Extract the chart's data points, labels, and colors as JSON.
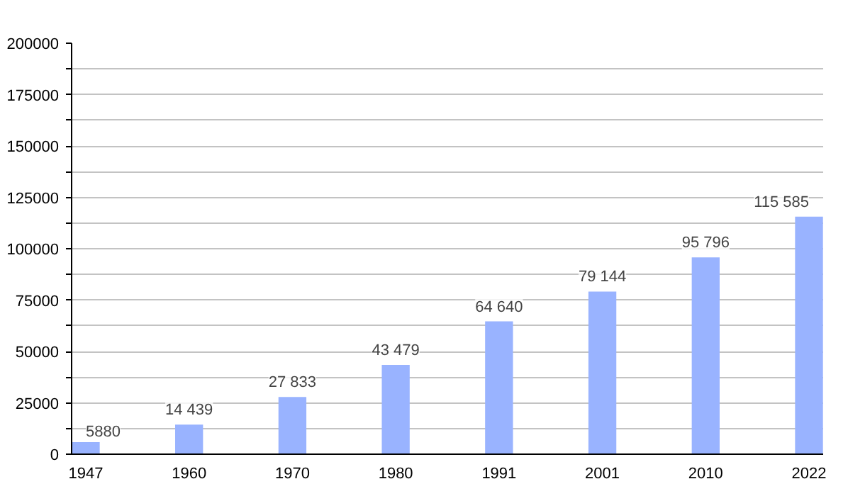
{
  "chart_data": {
    "type": "bar",
    "categories": [
      "1947",
      "1960",
      "1970",
      "1980",
      "1991",
      "2001",
      "2010",
      "2022"
    ],
    "values": [
      5880,
      14439,
      27833,
      43479,
      64640,
      79144,
      95796,
      115585
    ],
    "value_labels": [
      "5880",
      "14 439",
      "27 833",
      "43 479",
      "64 640",
      "79 144",
      "95 796",
      "115 585"
    ],
    "color": "#99b3ff",
    "ylim": [
      0,
      200000
    ],
    "yticks": [
      0,
      {
        "value": 12500,
        "label": null
      },
      25000,
      {
        "value": 37500,
        "label": null
      },
      50000,
      {
        "value": 62500,
        "label": null
      },
      75000,
      {
        "value": 87500,
        "label": null
      },
      100000,
      {
        "value": 112500,
        "label": null
      },
      125000,
      {
        "value": 137500,
        "label": null
      },
      150000,
      {
        "value": 162500,
        "label": null
      },
      175000,
      {
        "value": 187500,
        "label": null
      },
      200000
    ],
    "grid": "y"
  }
}
